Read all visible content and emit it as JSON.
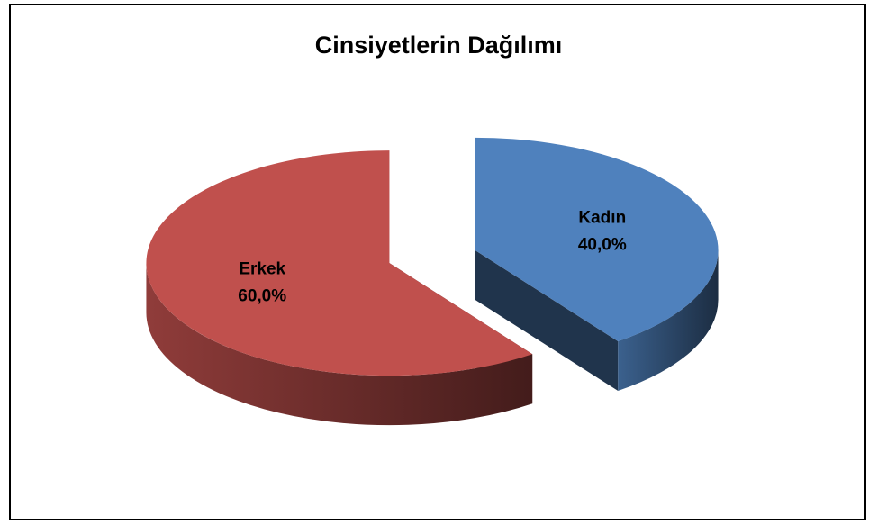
{
  "chart_data": {
    "type": "pie",
    "title": "Cinsiyetlerin Dağılımı",
    "categories": [
      "Kadın",
      "Erkek"
    ],
    "values": [
      40,
      60
    ],
    "value_labels": [
      "40,0%",
      "60,0%"
    ],
    "colors": [
      "#4f81bd",
      "#c0504d"
    ]
  }
}
